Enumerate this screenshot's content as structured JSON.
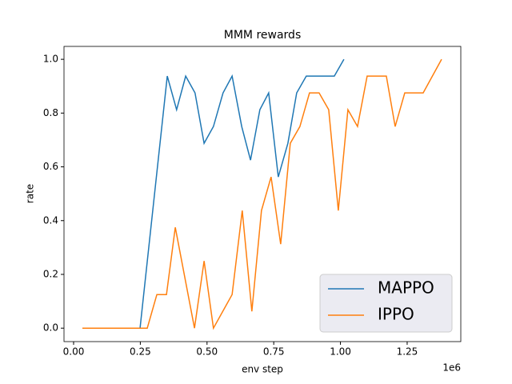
{
  "chart_data": {
    "type": "line",
    "title": "MMM rewards",
    "x_label": "env step",
    "y_label": "rate",
    "x_offset_label": "1e6",
    "xlim": [
      -36000,
      1451000
    ],
    "ylim": [
      -0.05,
      1.048
    ],
    "xticks": [
      {
        "value": 0,
        "label": "0.00"
      },
      {
        "value": 250000,
        "label": "0.25"
      },
      {
        "value": 500000,
        "label": "0.50"
      },
      {
        "value": 750000,
        "label": "0.75"
      },
      {
        "value": 1000000,
        "label": "1.00"
      },
      {
        "value": 1250000,
        "label": "1.25"
      }
    ],
    "yticks": [
      {
        "value": 0,
        "label": "0.0"
      },
      0.2,
      0.4,
      0.6,
      0.8,
      {
        "value": 1,
        "label": "1.0"
      }
    ],
    "grid": false,
    "legend": "lower right",
    "series": [
      {
        "name": "MAPPO",
        "color": "#1f77b4",
        "x": [
          33000,
          249000,
          351000,
          386000,
          420000,
          455000,
          489000,
          524000,
          560000,
          594000,
          630000,
          663000,
          698000,
          731000,
          767000,
          803000,
          836000,
          872000,
          977000,
          1013000
        ],
        "values": [
          0,
          0,
          0.9375,
          0.8125,
          0.9375,
          0.875,
          0.6875,
          0.75,
          0.875,
          0.9375,
          0.75,
          0.625,
          0.8125,
          0.875,
          0.5625,
          0.6875,
          0.875,
          0.9375,
          0.9375,
          1.0
        ]
      },
      {
        "name": "IPPO",
        "color": "#ff7f0e",
        "x": [
          33000,
          276000,
          312000,
          348000,
          381000,
          453000,
          489000,
          524000,
          594000,
          632000,
          668000,
          704000,
          740000,
          776000,
          812000,
          848000,
          884000,
          920000,
          956000,
          992000,
          1028000,
          1064000,
          1100000,
          1172000,
          1205000,
          1241000,
          1310000,
          1379000
        ],
        "values": [
          0,
          0,
          0.125,
          0.125,
          0.375,
          0,
          0.25,
          0,
          0.125,
          0.4375,
          0.0625,
          0.4375,
          0.5625,
          0.3125,
          0.6875,
          0.75,
          0.875,
          0.875,
          0.8125,
          0.4375,
          0.8125,
          0.75,
          0.9375,
          0.9375,
          0.75,
          0.875,
          0.875,
          1.0
        ]
      }
    ]
  }
}
